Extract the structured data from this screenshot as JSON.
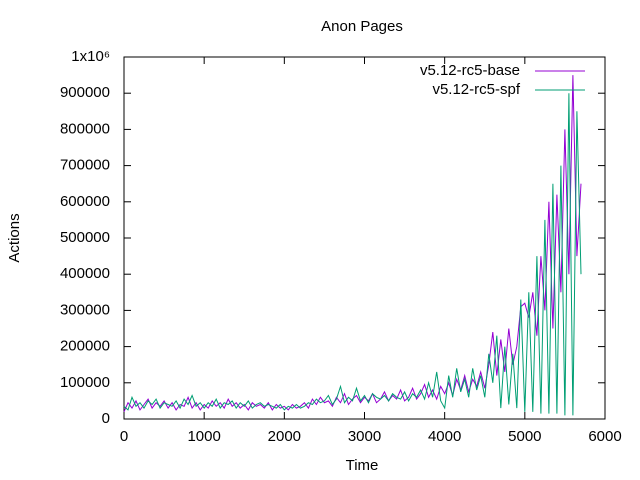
{
  "chart_data": {
    "type": "line",
    "title": "Anon Pages",
    "x_label": "Time",
    "y_label": "Actions",
    "xlim": [
      0,
      6000
    ],
    "xticks": [
      0,
      1000,
      2000,
      3000,
      4000,
      5000,
      6000
    ],
    "ylim": [
      0,
      1000000
    ],
    "yticks": [
      0,
      100000,
      200000,
      300000,
      400000,
      500000,
      600000,
      700000,
      800000,
      900000,
      {
        "value": 1000000,
        "label": "1x10⁶"
      }
    ],
    "legend": "top-right",
    "x": [
      0,
      50,
      100,
      150,
      200,
      250,
      300,
      350,
      400,
      450,
      500,
      550,
      600,
      650,
      700,
      750,
      800,
      850,
      900,
      950,
      1000,
      1050,
      1100,
      1150,
      1200,
      1250,
      1300,
      1350,
      1400,
      1450,
      1500,
      1550,
      1600,
      1650,
      1700,
      1750,
      1800,
      1850,
      1900,
      1950,
      2000,
      2050,
      2100,
      2150,
      2200,
      2250,
      2300,
      2350,
      2400,
      2450,
      2500,
      2550,
      2600,
      2650,
      2700,
      2750,
      2800,
      2850,
      2900,
      2950,
      3000,
      3050,
      3100,
      3150,
      3200,
      3250,
      3300,
      3350,
      3400,
      3450,
      3500,
      3550,
      3600,
      3650,
      3700,
      3750,
      3800,
      3850,
      3900,
      3950,
      4000,
      4050,
      4100,
      4150,
      4200,
      4250,
      4300,
      4350,
      4400,
      4450,
      4500,
      4550,
      4600,
      4650,
      4700,
      4750,
      4800,
      4850,
      4900,
      4950,
      5000,
      5050,
      5100,
      5150,
      5200,
      5250,
      5300,
      5350,
      5400,
      5450,
      5500,
      5550,
      5600,
      5650,
      5700
    ],
    "series": [
      {
        "name": "v5.12-rc5-base",
        "color": "#9400d3",
        "values": [
          20000,
          45000,
          30000,
          50000,
          25000,
          40000,
          55000,
          30000,
          45000,
          35000,
          50000,
          30000,
          45000,
          25000,
          40000,
          35000,
          60000,
          30000,
          45000,
          25000,
          40000,
          30000,
          50000,
          35000,
          45000,
          30000,
          55000,
          35000,
          45000,
          30000,
          40000,
          25000,
          45000,
          35000,
          40000,
          30000,
          45000,
          25000,
          40000,
          30000,
          35000,
          25000,
          40000,
          30000,
          35000,
          45000,
          30000,
          55000,
          40000,
          60000,
          45000,
          50000,
          35000,
          60000,
          45000,
          70000,
          40000,
          55000,
          65000,
          45000,
          60000,
          50000,
          70000,
          45000,
          55000,
          75000,
          50000,
          65000,
          55000,
          80000,
          50000,
          60000,
          85000,
          55000,
          70000,
          95000,
          60000,
          80000,
          55000,
          90000,
          70000,
          100000,
          65000,
          110000,
          80000,
          120000,
          75000,
          110000,
          90000,
          130000,
          85000,
          150000,
          240000,
          120000,
          220000,
          130000,
          250000,
          150000,
          200000,
          310000,
          320000,
          280000,
          350000,
          230000,
          450000,
          300000,
          600000,
          250000,
          620000,
          350000,
          800000,
          400000,
          950000,
          450000,
          650000
        ]
      },
      {
        "name": "v5.12-rc5-spf",
        "color": "#009e73",
        "values": [
          35000,
          25000,
          60000,
          35000,
          45000,
          30000,
          50000,
          40000,
          55000,
          30000,
          45000,
          40000,
          35000,
          50000,
          30000,
          55000,
          40000,
          65000,
          35000,
          45000,
          30000,
          45000,
          35000,
          55000,
          30000,
          45000,
          40000,
          50000,
          30000,
          45000,
          35000,
          50000,
          30000,
          40000,
          45000,
          35000,
          40000,
          35000,
          30000,
          40000,
          25000,
          35000,
          30000,
          40000,
          30000,
          35000,
          45000,
          40000,
          55000,
          45000,
          50000,
          65000,
          40000,
          55000,
          90000,
          45000,
          60000,
          50000,
          85000,
          50000,
          65000,
          45000,
          70000,
          60000,
          55000,
          65000,
          50000,
          70000,
          60000,
          55000,
          75000,
          50000,
          70000,
          60000,
          80000,
          55000,
          100000,
          60000,
          130000,
          50000,
          30000,
          120000,
          60000,
          140000,
          75000,
          110000,
          60000,
          140000,
          80000,
          120000,
          60000,
          180000,
          100000,
          230000,
          30000,
          200000,
          40000,
          180000,
          30000,
          330000,
          20000,
          350000,
          20000,
          450000,
          15000,
          550000,
          15000,
          650000,
          15000,
          700000,
          10000,
          900000,
          10000,
          850000,
          400000
        ]
      }
    ]
  }
}
